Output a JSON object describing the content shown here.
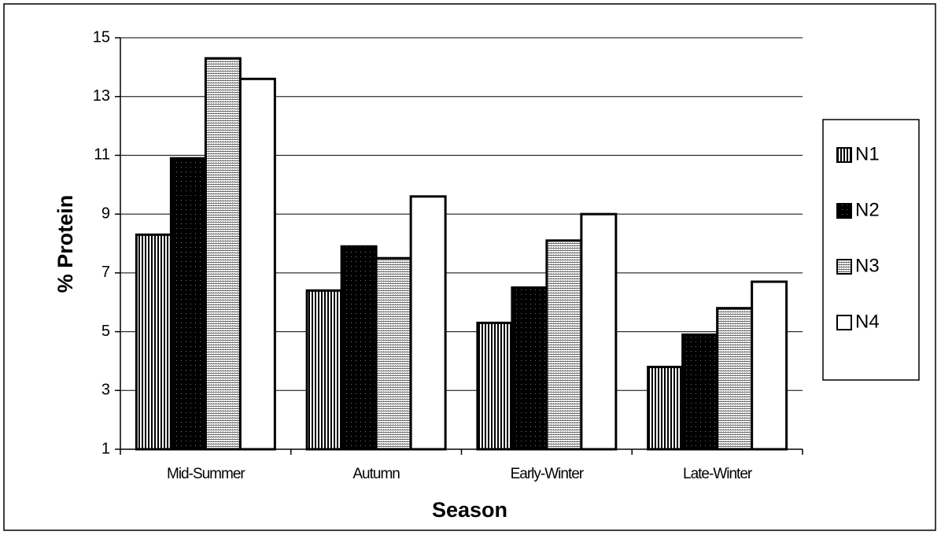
{
  "chart_data": {
    "type": "bar",
    "xlabel": "Season",
    "ylabel": "% Protein",
    "categories": [
      "Mid-Summer",
      "Autumn",
      "Early-Winter",
      "Late-Winter"
    ],
    "series": [
      {
        "name": "N1",
        "color": "#000000",
        "pattern": "vertical-lines",
        "values": [
          8.3,
          6.4,
          5.3,
          3.8
        ]
      },
      {
        "name": "N2",
        "color": "#000000",
        "pattern": "dots",
        "values": [
          10.9,
          7.9,
          6.5,
          4.9
        ]
      },
      {
        "name": "N3",
        "color": "#888888",
        "pattern": "horizontal-lines",
        "values": [
          14.3,
          7.5,
          8.1,
          5.8
        ]
      },
      {
        "name": "N4",
        "color": "#ffffff",
        "pattern": "solid",
        "values": [
          13.6,
          9.6,
          9.0,
          6.7
        ]
      }
    ],
    "ylim": [
      1,
      15
    ],
    "yticks": [
      1,
      3,
      5,
      7,
      9,
      11,
      13,
      15
    ],
    "grid": true,
    "legend": "right"
  }
}
